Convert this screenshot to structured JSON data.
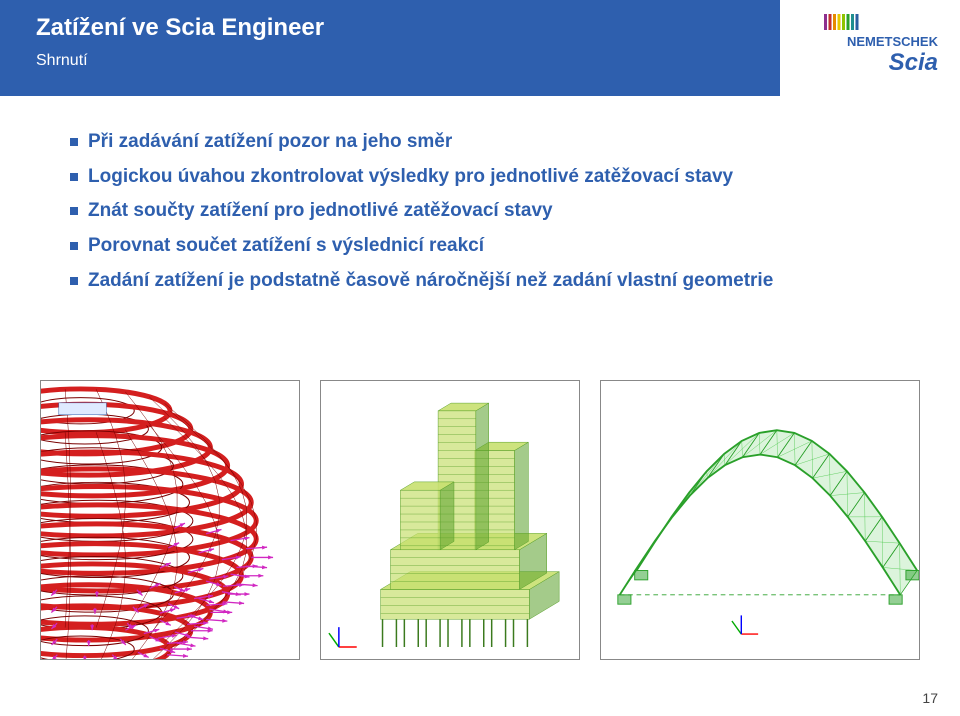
{
  "header": {
    "title": "Zatížení ve Scia Engineer",
    "subtitle": "Shrnutí",
    "bar_color": "#2e5fae"
  },
  "logo": {
    "brand_top": "NEMETSCHEK",
    "brand_bottom": "Scia",
    "stripe_colors": [
      "#8e2f8e",
      "#c23030",
      "#e68a00",
      "#e6c800",
      "#8ec400",
      "#2aa02a",
      "#1f8f8f",
      "#2a5fa0"
    ]
  },
  "bullets": [
    "Při zadávání zatížení pozor na jeho směr",
    "Logickou úvahou zkontrolovat výsledky pro jednotlivé zatěžovací stavy",
    "Znát součty zatížení pro jednotlivé zatěžovací stavy",
    "Porovnat součet zatížení s výslednicí reakcí",
    "Zadání zatížení je podstatně časově náročnější než zadání vlastní geometrie"
  ],
  "figures": {
    "fig1": {
      "type": "structural-render-curved-tower",
      "mesh_color": "#d41f1f",
      "load_arrow_color": "#d128c2",
      "edge_color": "#7a0000",
      "background": "#ffffff"
    },
    "fig2": {
      "type": "structural-render-hi-rise",
      "structure_color": "#5aa02a",
      "accent_color": "#c8e070",
      "base_pile_color": "#3b7a1e",
      "background": "#ffffff",
      "axis_tripod": {
        "x": "#ff0000",
        "y": "#00aa00",
        "z": "#0000ff"
      }
    },
    "fig3": {
      "type": "structural-render-arch",
      "structure_color": "#2aa02a",
      "mesh_color": "#3bc23b",
      "dashed_color": "#2aa02a",
      "background": "#ffffff",
      "axis_tripod": {
        "x": "#ff0000",
        "y": "#00aa00",
        "z": "#0000ff"
      }
    }
  },
  "page_number": "17",
  "colors": {
    "text_primary": "#2e5fae",
    "border": "#888888",
    "page_num": "#444444"
  }
}
